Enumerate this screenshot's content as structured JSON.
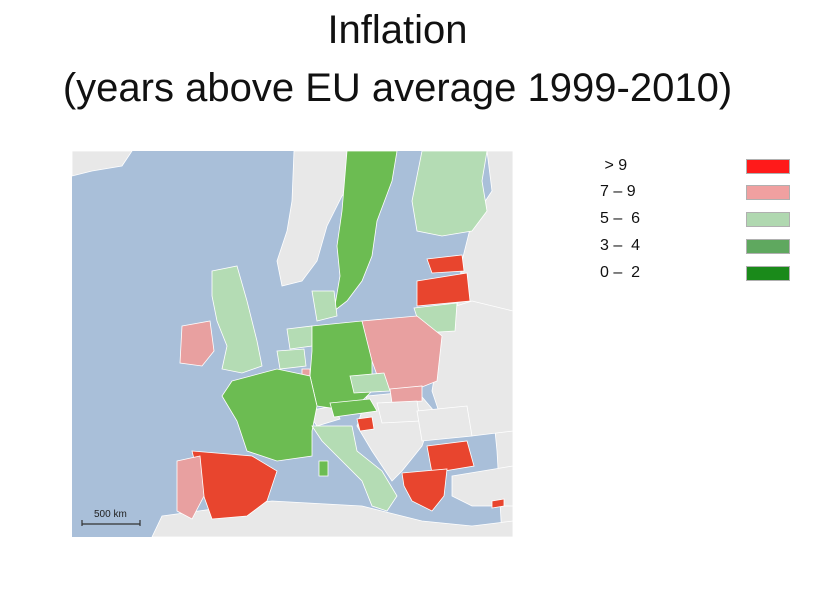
{
  "title": {
    "line1": "Inflation",
    "line2": "(years above EU average 1999-2010)"
  },
  "legend": [
    {
      "label": " > 9",
      "color": "#ff1a1a"
    },
    {
      "label": "7 – 9",
      "color": "#f0a0a0"
    },
    {
      "label": "5 –  6",
      "color": "#b0d8b0"
    },
    {
      "label": "3 –  4",
      "color": "#5fa85f"
    },
    {
      "label": "0 –  2",
      "color": "#1a8a1a"
    }
  ],
  "map": {
    "scale_label": "500 km",
    "colors": {
      "sea": "#a9bfd9",
      "non_eu": "#e8e8e8",
      "cat_gt9": "#e8452e",
      "cat_7_9": "#e8a0a0",
      "cat_5_6": "#b4dcb4",
      "cat_3_4": "#6cbc52"
    }
  }
}
